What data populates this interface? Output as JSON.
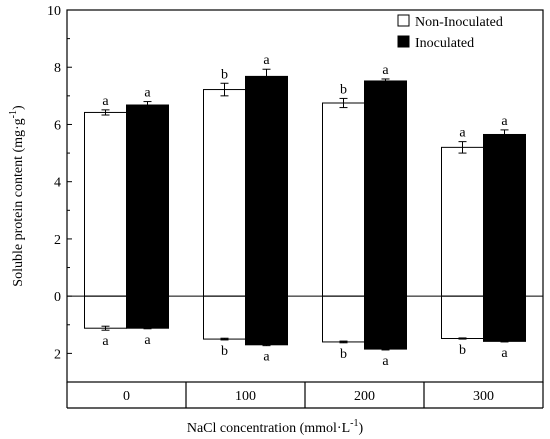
{
  "chart_data": {
    "type": "bar",
    "xlabel_main": "NaCl concentration (mmol·L",
    "xlabel_sup": "-1",
    "xlabel_tail": ")",
    "ylabel_main": "Soluble protein content (mg·g",
    "ylabel_sup": "-1",
    "ylabel_tail": ")",
    "categories": [
      "0",
      "100",
      "200",
      "300"
    ],
    "ylim": [
      -3,
      10
    ],
    "yticks": [
      {
        "value": 10,
        "label": "10"
      },
      {
        "value": 8,
        "label": "8"
      },
      {
        "value": 6,
        "label": "6"
      },
      {
        "value": 4,
        "label": "4"
      },
      {
        "value": 2,
        "label": "2"
      },
      {
        "value": 0,
        "label": "0"
      },
      {
        "value": -2,
        "label": "2"
      }
    ],
    "legend": {
      "position": "top-right"
    },
    "series": [
      {
        "name": "Non-Inoculated",
        "fill": "#ffffff",
        "upper": [
          6.42,
          7.22,
          6.75,
          5.2
        ],
        "upper_err": [
          0.09,
          0.22,
          0.16,
          0.2
        ],
        "upper_sig": [
          "a",
          "b",
          "b",
          "a"
        ],
        "lower": [
          -1.12,
          -1.5,
          -1.6,
          -1.48
        ],
        "lower_err": [
          0.07,
          0.03,
          0.03,
          0.02
        ],
        "lower_sig": [
          "a",
          "b",
          "b",
          "b"
        ]
      },
      {
        "name": "Inoculated",
        "fill": "#000000",
        "upper": [
          6.68,
          7.68,
          7.52,
          5.65
        ],
        "upper_err": [
          0.12,
          0.25,
          0.07,
          0.16
        ],
        "upper_sig": [
          "a",
          "a",
          "a",
          "a"
        ],
        "lower": [
          -1.12,
          -1.7,
          -1.85,
          -1.58
        ],
        "lower_err": [
          0.02,
          0.03,
          0.03,
          0.02
        ],
        "lower_sig": [
          "a",
          "a",
          "a",
          "a"
        ]
      }
    ]
  }
}
